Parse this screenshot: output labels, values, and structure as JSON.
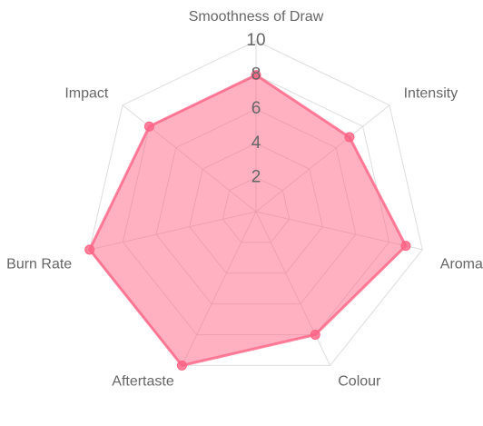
{
  "chart_data": {
    "type": "radar",
    "categories": [
      "Smoothness of Draw",
      "Intensity",
      "Aroma",
      "Colour",
      "Aftertaste",
      "Burn Rate",
      "Impact"
    ],
    "values": [
      8,
      7,
      9,
      8,
      10,
      10,
      8
    ],
    "color": "#ff6384",
    "rlim": [
      0,
      10
    ],
    "rticks": [
      2,
      4,
      6,
      8,
      10
    ],
    "grid": true
  }
}
